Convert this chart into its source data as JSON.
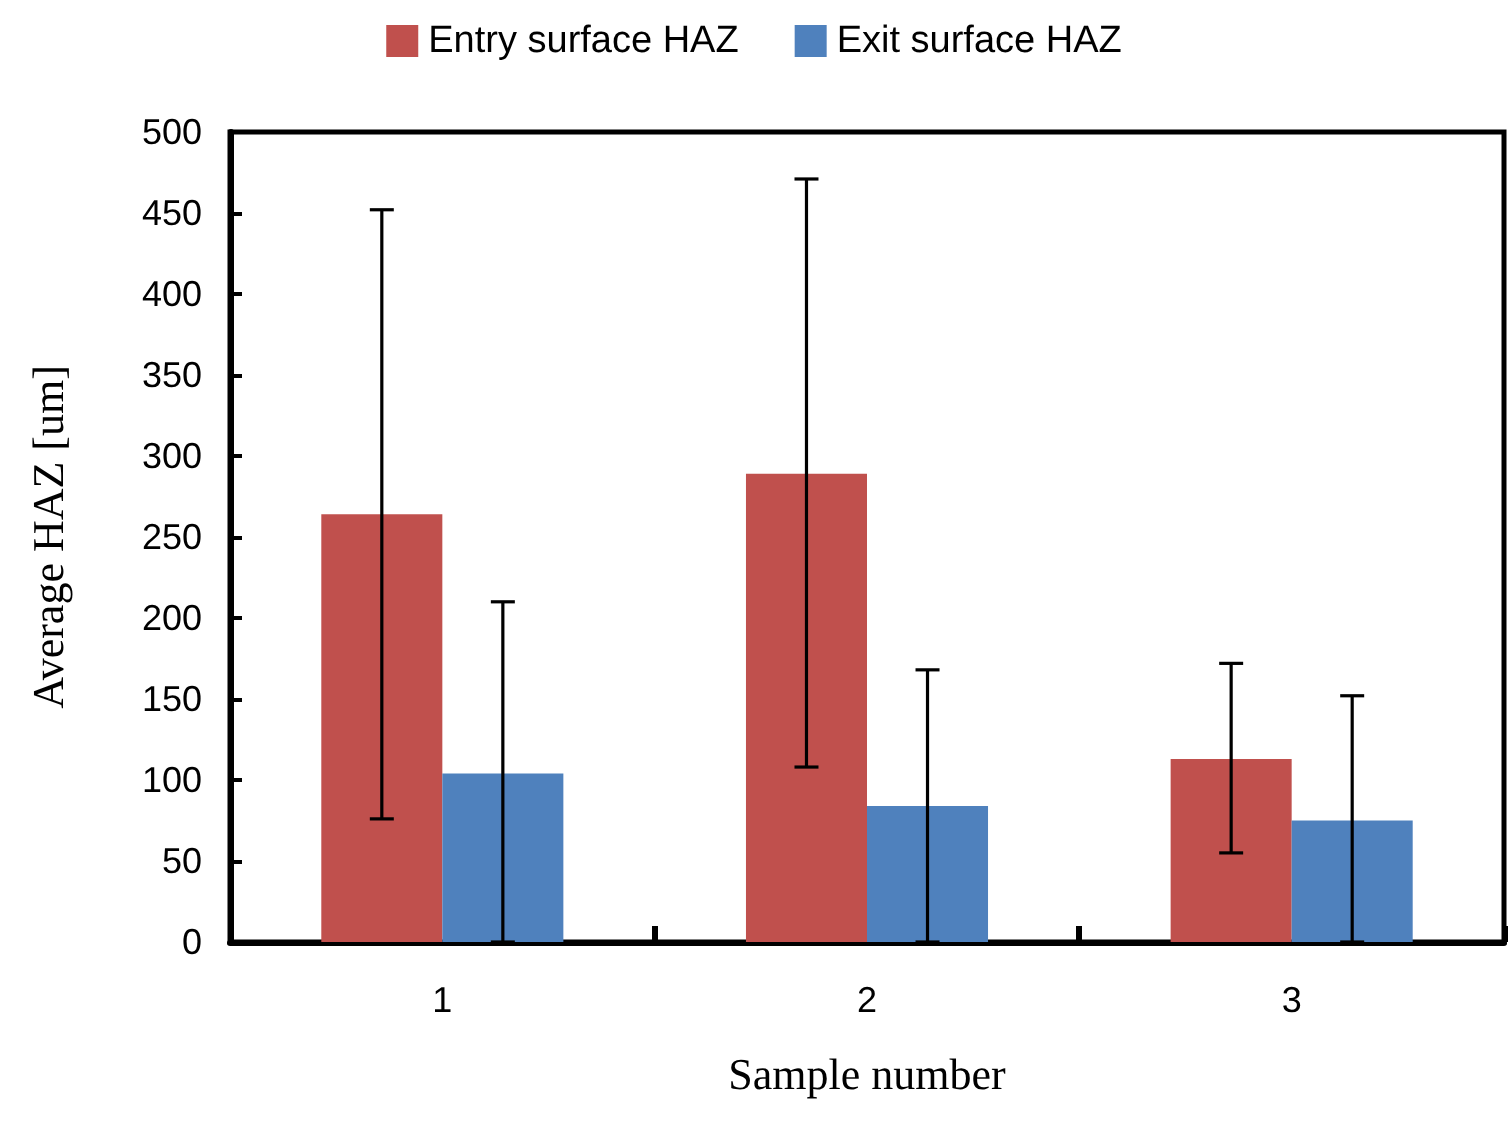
{
  "chart_data": {
    "type": "bar",
    "xlabel": "Sample number",
    "ylabel": "Average HAZ [um]",
    "categories": [
      "1",
      "2",
      "3"
    ],
    "series": [
      {
        "name": "Entry surface HAZ",
        "color": "#c0504d",
        "values": [
          264,
          289,
          113
        ],
        "errors": [
          [
            76,
            452
          ],
          [
            108,
            471
          ],
          [
            55,
            172
          ]
        ]
      },
      {
        "name": "Exit surface HAZ",
        "color": "#4f81bd",
        "values": [
          104,
          84,
          75
        ],
        "errors": [
          [
            0,
            210
          ],
          [
            0,
            168
          ],
          [
            0,
            152
          ]
        ]
      }
    ],
    "ylim": [
      0,
      500
    ],
    "yticks": [
      0,
      50,
      100,
      150,
      200,
      250,
      300,
      350,
      400,
      450,
      500
    ],
    "grid": false,
    "legend": "top"
  }
}
